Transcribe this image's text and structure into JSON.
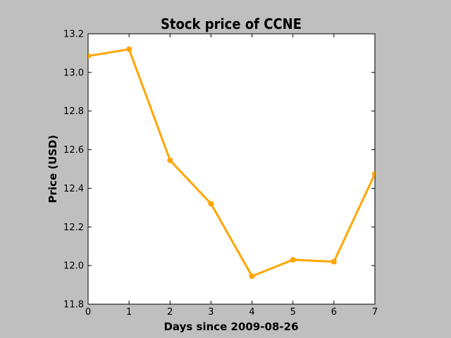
{
  "chart_data": {
    "type": "line",
    "title": "Stock price of CCNE",
    "xlabel": "Days since 2009-08-26",
    "ylabel": "Price (USD)",
    "xlim": [
      0,
      7
    ],
    "ylim": [
      11.8,
      13.2
    ],
    "xticks": [
      "0",
      "1",
      "2",
      "3",
      "4",
      "5",
      "6",
      "7"
    ],
    "yticks": [
      "11.8",
      "12.0",
      "12.2",
      "12.4",
      "12.6",
      "12.8",
      "13.0",
      "13.2"
    ],
    "grid": false,
    "series": [
      {
        "x": [
          0,
          1,
          2,
          3,
          4,
          5,
          6,
          7
        ],
        "values": [
          13.085,
          13.12,
          12.545,
          12.32,
          11.945,
          12.03,
          12.02,
          12.475
        ],
        "color": "#ffa500"
      }
    ]
  }
}
